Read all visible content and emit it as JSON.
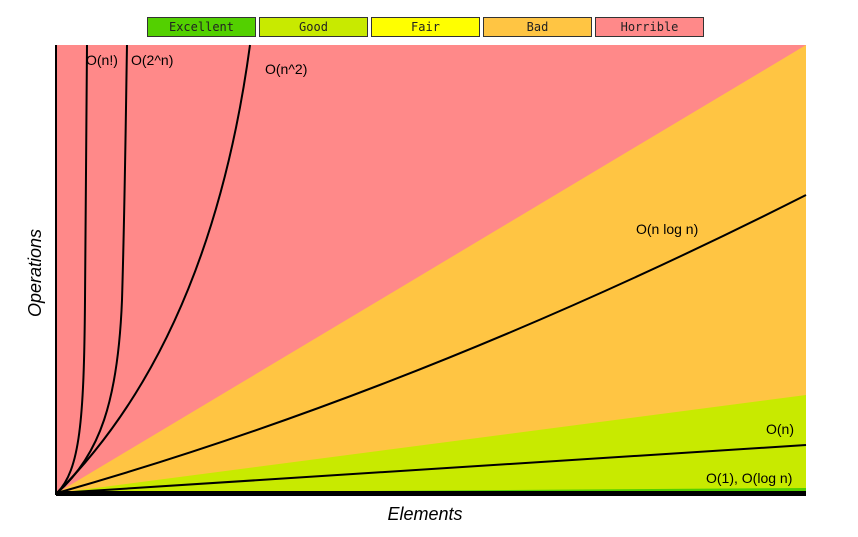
{
  "chart_data": {
    "type": "area",
    "xlabel": "Elements",
    "ylabel": "Operations",
    "legend": [
      {
        "label": "Excellent",
        "color": "#53d000"
      },
      {
        "label": "Good",
        "color": "#c8ea00"
      },
      {
        "label": "Fair",
        "color": "#ffff00"
      },
      {
        "label": "Bad",
        "color": "#ffc543"
      },
      {
        "label": "Horrible",
        "color": "#ff8989"
      }
    ],
    "regions": [
      {
        "name": "Horrible",
        "color": "#ff8989"
      },
      {
        "name": "Bad",
        "color": "#ffc543"
      },
      {
        "name": "Good",
        "color": "#c8ea00"
      },
      {
        "name": "Excellent",
        "color": "#53d000"
      }
    ],
    "curves": [
      {
        "label": "O(n!)"
      },
      {
        "label": "O(2^n)"
      },
      {
        "label": "O(n^2)"
      },
      {
        "label": "O(n log n)"
      },
      {
        "label": "O(n)"
      },
      {
        "label": "O(1), O(log n)"
      }
    ]
  }
}
